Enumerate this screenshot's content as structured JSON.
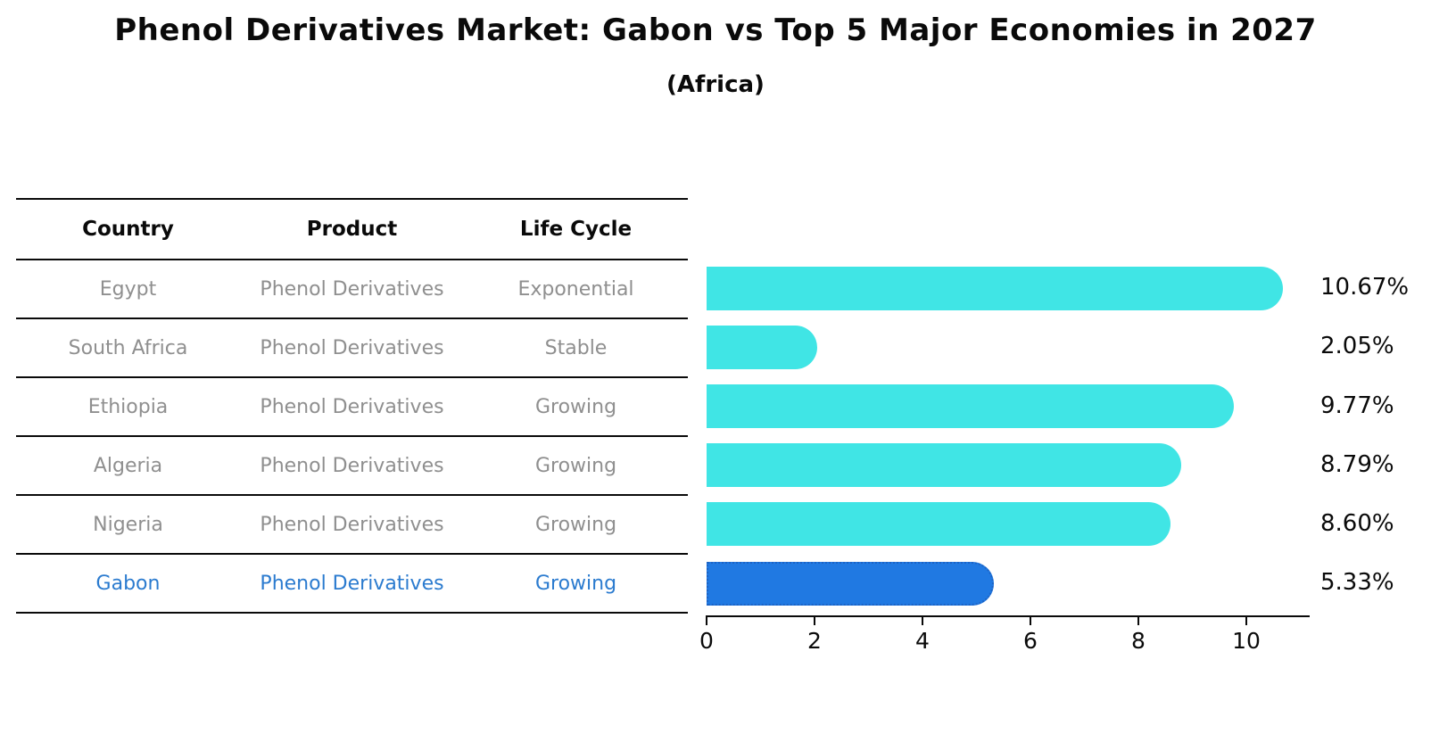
{
  "title": "Phenol Derivatives Market: Gabon vs Top 5 Major Economies in 2027",
  "subtitle": "(Africa)",
  "table": {
    "headers": [
      "Country",
      "Product",
      "Life Cycle"
    ],
    "rows": [
      {
        "country": "Egypt",
        "product": "Phenol Derivatives",
        "life_cycle": "Exponential",
        "highlight": false
      },
      {
        "country": "South Africa",
        "product": "Phenol Derivatives",
        "life_cycle": "Stable",
        "highlight": false
      },
      {
        "country": "Ethiopia",
        "product": "Phenol Derivatives",
        "life_cycle": "Growing",
        "highlight": false
      },
      {
        "country": "Algeria",
        "product": "Phenol Derivatives",
        "life_cycle": "Growing",
        "highlight": false
      },
      {
        "country": "Nigeria",
        "product": "Phenol Derivatives",
        "life_cycle": "Growing",
        "highlight": false
      },
      {
        "country": "Gabon",
        "product": "Phenol Derivatives",
        "life_cycle": "Growing",
        "highlight": true
      }
    ]
  },
  "chart_data": {
    "type": "bar",
    "orientation": "horizontal",
    "title": "Phenol Derivatives Market: Gabon vs Top 5 Major Economies in 2027 (Africa)",
    "categories": [
      "Egypt",
      "South Africa",
      "Ethiopia",
      "Algeria",
      "Nigeria",
      "Gabon"
    ],
    "values": [
      10.67,
      2.05,
      9.77,
      8.79,
      8.6,
      5.33
    ],
    "value_labels": [
      "10.67%",
      "2.05%",
      "9.77%",
      "8.79%",
      "8.60%",
      "5.33%"
    ],
    "xticks": [
      0,
      2,
      4,
      6,
      8,
      10
    ],
    "xlim": [
      0,
      11.17
    ],
    "grid": false,
    "legend": "none",
    "highlight_index": 5
  },
  "colors": {
    "bar": "#40e5e5",
    "highlight_bar": "#2079e2",
    "highlight_border": "#1d63c4",
    "highlight_text": "#2b7bcf",
    "table_text": "#8f8f8f",
    "ink": "#0a0a0a"
  }
}
